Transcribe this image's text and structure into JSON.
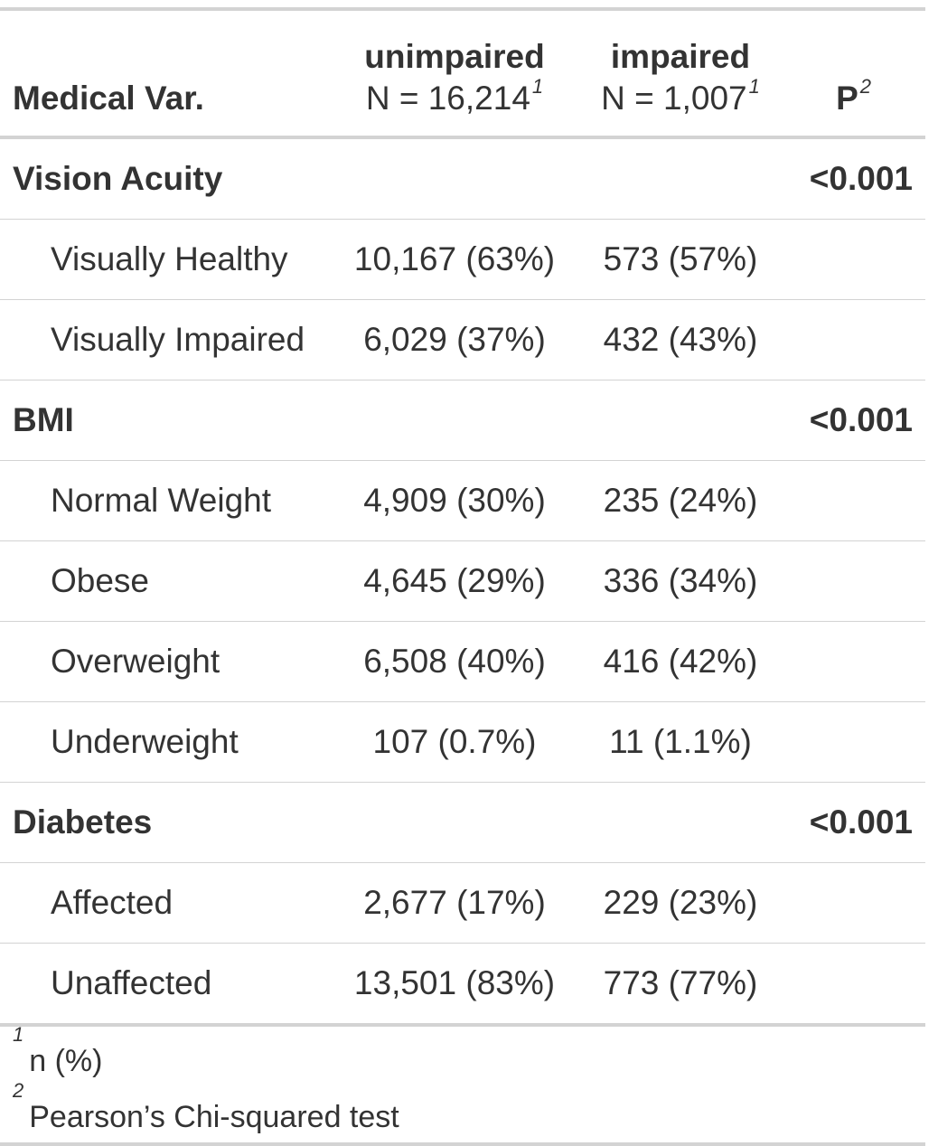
{
  "header": {
    "col0": "Medical Var.",
    "col1_name": "unimpaired",
    "col1_n": "N = 16,214",
    "col1_sup": "1",
    "col2_name": "impaired",
    "col2_n": "N = 1,007",
    "col2_sup": "1",
    "col3": "P",
    "col3_sup": "2"
  },
  "rows": [
    {
      "type": "group",
      "label": "Vision Acuity",
      "c1": "",
      "c2": "",
      "p": "<0.001"
    },
    {
      "type": "item",
      "label": "Visually Healthy",
      "c1": "10,167 (63%)",
      "c2": "573 (57%)",
      "p": ""
    },
    {
      "type": "item",
      "label": "Visually Impaired",
      "c1": "6,029 (37%)",
      "c2": "432 (43%)",
      "p": ""
    },
    {
      "type": "group",
      "label": "BMI",
      "c1": "",
      "c2": "",
      "p": "<0.001"
    },
    {
      "type": "item",
      "label": "Normal Weight",
      "c1": "4,909 (30%)",
      "c2": "235 (24%)",
      "p": ""
    },
    {
      "type": "item",
      "label": "Obese",
      "c1": "4,645 (29%)",
      "c2": "336 (34%)",
      "p": ""
    },
    {
      "type": "item",
      "label": "Overweight",
      "c1": "6,508 (40%)",
      "c2": "416 (42%)",
      "p": ""
    },
    {
      "type": "item",
      "label": "Underweight",
      "c1": "107 (0.7%)",
      "c2": "11 (1.1%)",
      "p": ""
    },
    {
      "type": "group",
      "label": "Diabetes",
      "c1": "",
      "c2": "",
      "p": "<0.001"
    },
    {
      "type": "item",
      "label": "Affected",
      "c1": "2,677 (17%)",
      "c2": "229 (23%)",
      "p": ""
    },
    {
      "type": "item",
      "label": "Unaffected",
      "c1": "13,501 (83%)",
      "c2": "773 (77%)",
      "p": ""
    }
  ],
  "footnotes": [
    {
      "mark": "1",
      "text": "n (%)"
    },
    {
      "mark": "2",
      "text": "Pearson’s Chi-squared test"
    }
  ]
}
